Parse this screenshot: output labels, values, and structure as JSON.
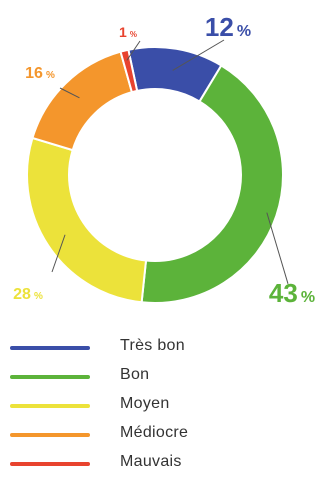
{
  "chart_data": {
    "type": "pie",
    "style": "donut",
    "categories": [
      "Très bon",
      "Bon",
      "Moyen",
      "Médiocre",
      "Mauvais"
    ],
    "values": [
      12,
      43,
      28,
      16,
      1
    ],
    "value_labels": [
      "12",
      "43",
      "28",
      "16",
      "1"
    ],
    "unit": "%",
    "colors": [
      "#3a4ea8",
      "#5cb33a",
      "#ece23a",
      "#f4962c",
      "#e8432e"
    ],
    "legend_position": "bottom"
  }
}
